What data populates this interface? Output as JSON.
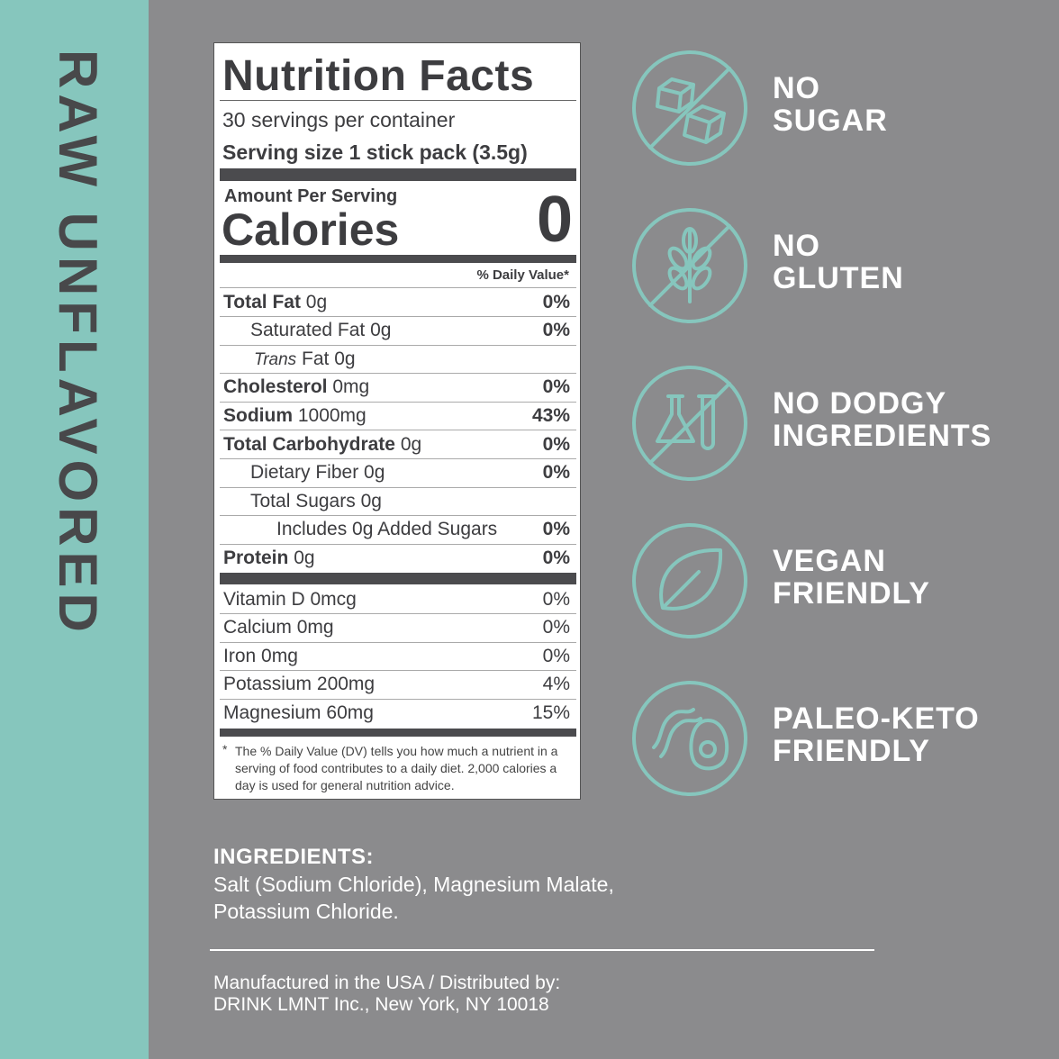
{
  "side_label": "RAW UNFLAVORED",
  "nutrition": {
    "title": "Nutrition Facts",
    "servings": "30 servings per container",
    "serving_size": "Serving size 1 stick pack (3.5g)",
    "amount_per_serving": "Amount Per Serving",
    "calories_label": "Calories",
    "calories_value": "0",
    "daily_value_header": "% Daily Value*",
    "rows": [
      {
        "name": "Total Fat",
        "amount": "0g",
        "dv": "0%"
      },
      {
        "name": "Saturated Fat",
        "amount": "0g",
        "dv": "0%"
      },
      {
        "name_italic": "Trans",
        "name": "Fat",
        "amount": "0g"
      },
      {
        "name": "Cholesterol",
        "amount": "0mg",
        "dv": "0%"
      },
      {
        "name": "Sodium",
        "amount": "1000mg",
        "dv": "43%"
      },
      {
        "name": "Total Carbohydrate",
        "amount": "0g",
        "dv": "0%"
      },
      {
        "name": "Dietary Fiber",
        "amount": "0g",
        "dv": "0%"
      },
      {
        "name": "Total Sugars",
        "amount": "0g"
      },
      {
        "name": "Includes 0g Added Sugars",
        "dv": "0%"
      },
      {
        "name": "Protein",
        "amount": "0g",
        "dv": "0%"
      }
    ],
    "minerals": [
      {
        "name": "Vitamin D",
        "amount": "0mcg",
        "dv": "0%"
      },
      {
        "name": "Calcium",
        "amount": "0mg",
        "dv": "0%"
      },
      {
        "name": "Iron",
        "amount": "0mg",
        "dv": "0%"
      },
      {
        "name": "Potassium",
        "amount": "200mg",
        "dv": "4%"
      },
      {
        "name": "Magnesium",
        "amount": "60mg",
        "dv": "15%"
      }
    ],
    "footnote_mark": "*",
    "footnote": "The % Daily Value (DV) tells you how much a nutrient in a serving of food contributes to a daily diet. 2,000 calories a day is used for general nutrition advice."
  },
  "badges": [
    {
      "lines": [
        "NO",
        "SUGAR"
      ]
    },
    {
      "lines": [
        "NO",
        "GLUTEN"
      ]
    },
    {
      "lines": [
        "NO DODGY",
        "INGREDIENTS"
      ]
    },
    {
      "lines": [
        "VEGAN",
        "FRIENDLY"
      ]
    },
    {
      "lines": [
        "PALEO-KETO",
        "FRIENDLY"
      ]
    }
  ],
  "ingredients": {
    "heading": "INGREDIENTS:",
    "lines": [
      "Salt (Sodium Chloride), Magnesium Malate,",
      "Potassium Chloride."
    ]
  },
  "footer": {
    "lines": [
      "Manufactured in the USA / Distributed by:",
      "DRINK LMNT Inc., New York, NY 10018"
    ]
  }
}
